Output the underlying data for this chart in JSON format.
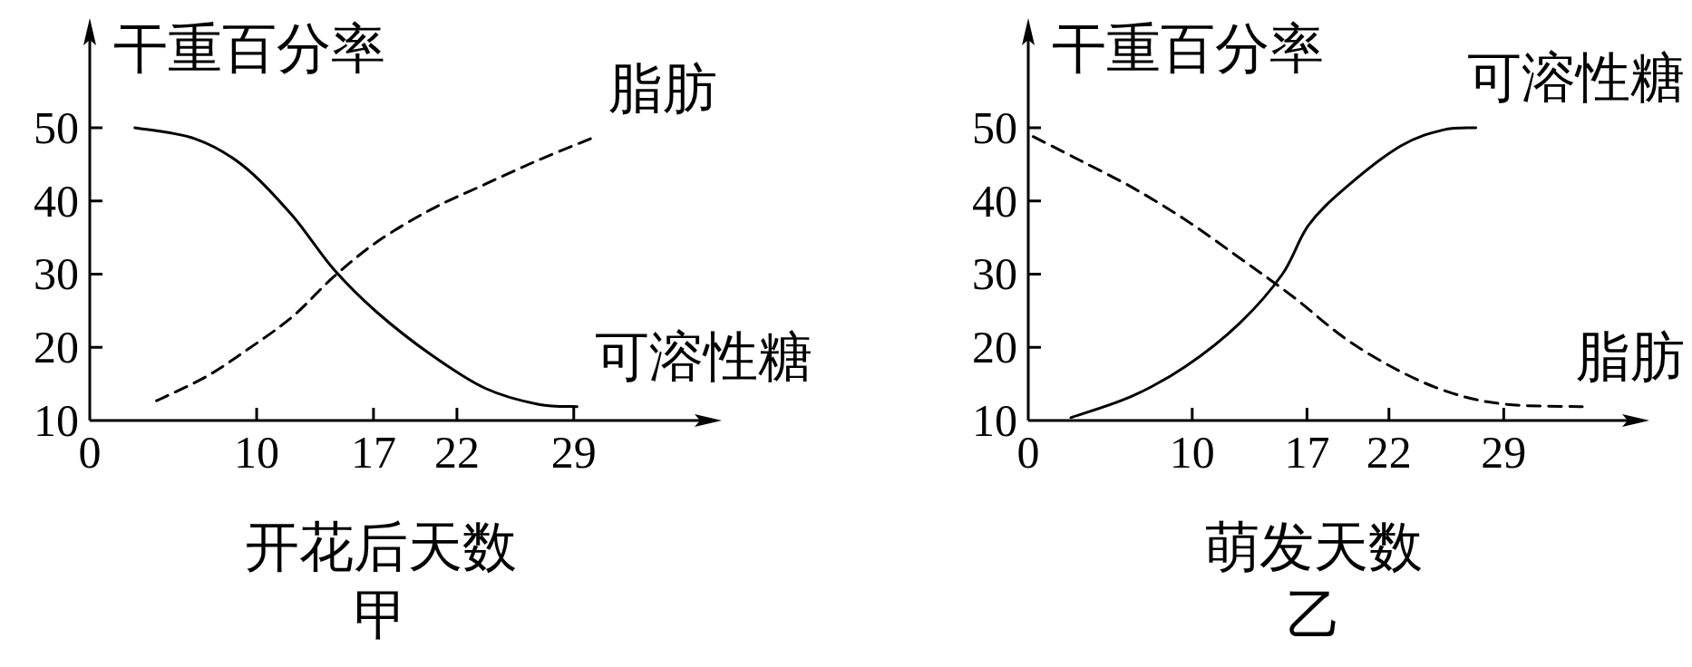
{
  "chart_data": [
    {
      "type": "line",
      "ylabel": "干重百分率",
      "xlabel": "开花后天数",
      "annotations": [
        "甲"
      ],
      "xlim": [
        0,
        37
      ],
      "ylim": [
        10,
        63
      ],
      "xticks": [
        0,
        10,
        17,
        22,
        29
      ],
      "yticks": [
        10,
        20,
        30,
        40,
        50
      ],
      "grid": false,
      "marker": "none",
      "series": [
        {
          "name": "可溶性糖",
          "color": "#000000",
          "line_style": "solid",
          "x": [
            2.7,
            6.3,
            9.2,
            12.1,
            14.6,
            17.2,
            20.5,
            23.7,
            26.9,
            29.2
          ],
          "values": [
            50,
            48.5,
            44.8,
            38.1,
            30.7,
            24.8,
            18.9,
            14.4,
            12.2,
            11.9
          ]
        },
        {
          "name": "脂肪",
          "color": "#000000",
          "line_style": "dashed",
          "x": [
            4,
            6.9,
            9.2,
            12.1,
            14.6,
            17.2,
            20.5,
            23.7,
            26.9,
            30
          ],
          "values": [
            12.7,
            15.9,
            19.3,
            24.1,
            29.6,
            34.4,
            38.9,
            42.3,
            45.6,
            48.5
          ]
        }
      ]
    },
    {
      "type": "line",
      "ylabel": "干重百分率",
      "xlabel": "萌发天数",
      "annotations": [
        "乙"
      ],
      "xlim": [
        0,
        37
      ],
      "ylim": [
        10,
        63
      ],
      "xticks": [
        0,
        10,
        17,
        22,
        29
      ],
      "yticks": [
        10,
        20,
        30,
        40,
        50
      ],
      "grid": false,
      "marker": "none",
      "series": [
        {
          "name": "可溶性糖",
          "color": "#000000",
          "line_style": "solid",
          "x": [
            2.6,
            6.3,
            9.6,
            12.9,
            15.5,
            17.1,
            19.4,
            22.7,
            25.3,
            27.3
          ],
          "values": [
            10.4,
            13.3,
            17.4,
            23.3,
            30,
            36.7,
            41.9,
            47.5,
            49.7,
            50
          ]
        },
        {
          "name": "脂肪",
          "color": "#000000",
          "line_style": "dashed",
          "x": [
            0.3,
            3.1,
            6.3,
            9.6,
            12.9,
            16.1,
            19.4,
            22.7,
            25.9,
            29.2,
            33.8
          ],
          "values": [
            48.8,
            45.6,
            41.9,
            37.4,
            32.2,
            27,
            21.1,
            16.7,
            13.7,
            12.2,
            11.9
          ]
        }
      ]
    }
  ]
}
